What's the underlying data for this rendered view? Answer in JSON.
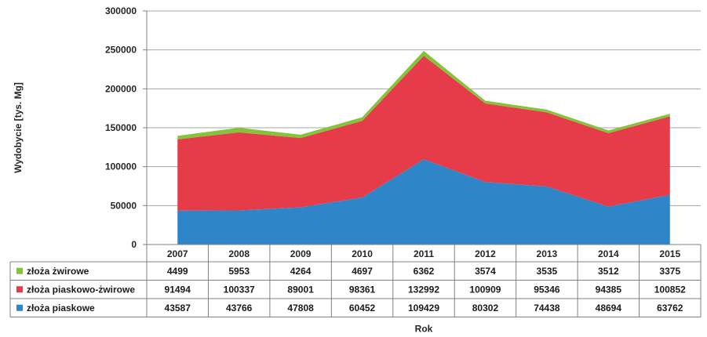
{
  "chart_data": {
    "type": "area",
    "stacked": true,
    "xlabel": "Rok",
    "ylabel": "Wydobycie [tys. Mg]",
    "ylim": [
      0,
      300000
    ],
    "yticks": [
      0,
      50000,
      100000,
      150000,
      200000,
      250000,
      300000
    ],
    "grid": true,
    "legend": "data table below chart",
    "categories": [
      "2007",
      "2008",
      "2009",
      "2010",
      "2011",
      "2012",
      "2013",
      "2014",
      "2015"
    ],
    "series": [
      {
        "name": "złoża piaskowe",
        "color": "#2e86c8",
        "values": [
          43587,
          43766,
          47808,
          60452,
          109429,
          80302,
          74438,
          48694,
          63762
        ]
      },
      {
        "name": "złoża piaskowo-żwirowe",
        "color": "#e63c4a",
        "values": [
          91494,
          100337,
          89001,
          98361,
          132992,
          100909,
          95346,
          94385,
          100852
        ]
      },
      {
        "name": "złoża żwirowe",
        "color": "#86c33c",
        "values": [
          4499,
          5953,
          4264,
          4697,
          6362,
          3574,
          3535,
          3512,
          3375
        ]
      }
    ],
    "table_row_order": [
      "złoża żwirowe",
      "złoża piaskowo-żwirowe",
      "złoża piaskowe"
    ]
  }
}
